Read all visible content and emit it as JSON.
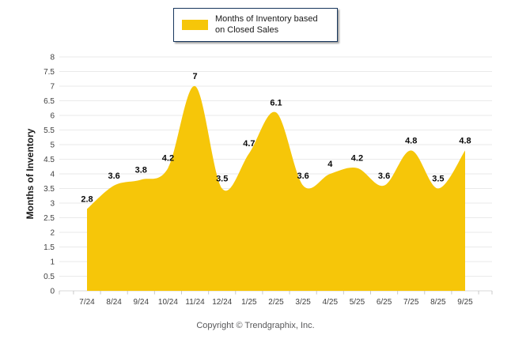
{
  "legend": {
    "label": "Months of Inventory based on Closed Sales"
  },
  "footer": "Copyright © Trendgraphix, Inc.",
  "colors": {
    "series_fill": "#F6C609",
    "legend_border": "#17365D",
    "gridline": "#EAEAEA",
    "baseline": "#D8D8D8",
    "tick": "#C8C8C8",
    "tick_label": "#3F3F3F",
    "data_label": "#0A0A0A",
    "footer_text": "#58585A"
  },
  "chart_data": {
    "type": "area",
    "title": "",
    "categories": [
      "7/24",
      "8/24",
      "9/24",
      "10/24",
      "11/24",
      "12/24",
      "1/25",
      "2/25",
      "3/25",
      "4/25",
      "5/25",
      "6/25",
      "7/25",
      "8/25",
      "9/25"
    ],
    "values": [
      2.8,
      3.6,
      3.8,
      4.2,
      7,
      3.5,
      4.7,
      6.1,
      3.6,
      4,
      4.2,
      3.6,
      4.8,
      3.5,
      4.8
    ],
    "xlabel": "",
    "ylabel": "Months of Inventory",
    "ylim": [
      0,
      8
    ],
    "ytick_step": 0.5,
    "grid": true,
    "legend_position": "top",
    "legend_entries": [
      "Months of Inventory based on Closed Sales"
    ],
    "smoothing": "spline",
    "data_labels_shown": true
  }
}
